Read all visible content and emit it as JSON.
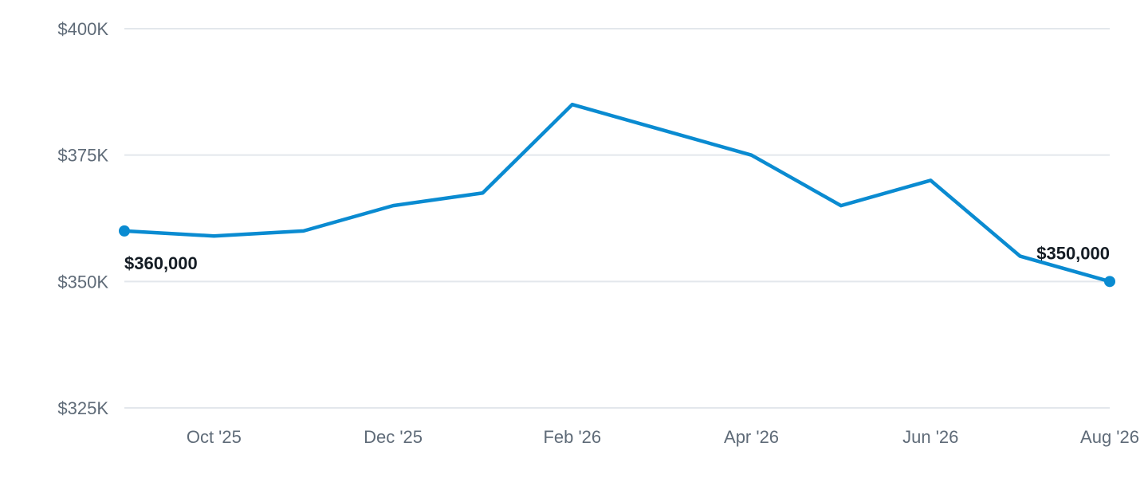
{
  "chart_data": {
    "type": "line",
    "title": "",
    "xlabel": "",
    "ylabel": "",
    "x": [
      "2025-09",
      "2025-10",
      "2025-11",
      "2025-12",
      "2026-01",
      "2026-02",
      "2026-03",
      "2026-04",
      "2026-05",
      "2026-06",
      "2026-07",
      "2026-08"
    ],
    "series": [
      {
        "values": [
          360000,
          359000,
          360000,
          365000,
          367500,
          385000,
          380000,
          375000,
          365000,
          370000,
          355000,
          350000
        ]
      }
    ],
    "ylim": [
      325000,
      400000
    ],
    "y_ticks": [
      {
        "value": 400000,
        "label": "$400K"
      },
      {
        "value": 375000,
        "label": "$375K"
      },
      {
        "value": 350000,
        "label": "$350K"
      },
      {
        "value": 325000,
        "label": "$325K"
      }
    ],
    "x_ticks": [
      {
        "value": "2025-10",
        "label": "Oct '25"
      },
      {
        "value": "2025-12",
        "label": "Dec '25"
      },
      {
        "value": "2026-02",
        "label": "Feb '26"
      },
      {
        "value": "2026-04",
        "label": "Apr '26"
      },
      {
        "value": "2026-06",
        "label": "Jun '26"
      },
      {
        "value": "2026-08",
        "label": "Aug '26"
      }
    ],
    "data_labels": [
      {
        "x": "2025-09",
        "text": "$360,000"
      },
      {
        "x": "2026-08",
        "text": "$350,000"
      }
    ],
    "grid": true,
    "legend": false,
    "colors": {
      "line": "#0a8bd1",
      "grid": "#e3e7ec",
      "tick_text": "#5f6b78",
      "label_text": "#141c24"
    }
  }
}
